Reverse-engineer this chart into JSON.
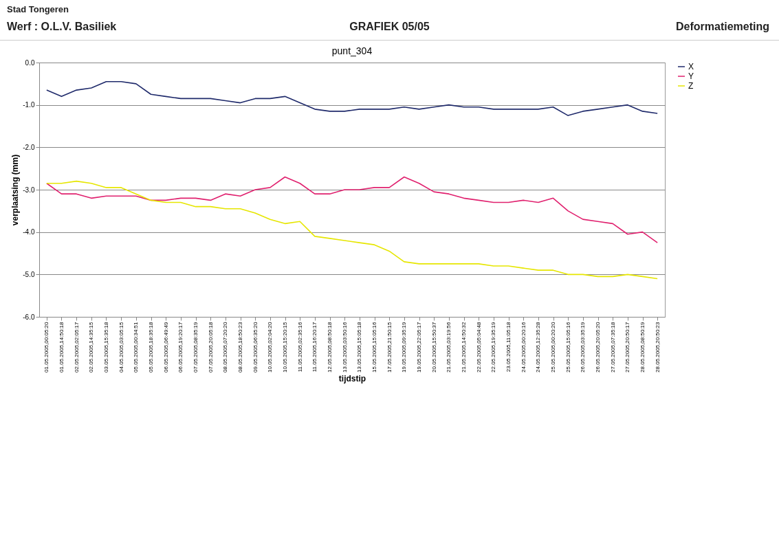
{
  "chart_data": {
    "type": "line",
    "title": "punt_304",
    "xlabel": "tijdstip",
    "ylabel": "verplaatsing (mm)",
    "annotations": [
      "Stad Tongeren",
      "Werf :  O.L.V. Basiliek",
      "GRAFIEK 05/05",
      "Deformatiemeting"
    ],
    "categories": [
      "01.05.2005,00:05:20",
      "01.05.2005,14:50:18",
      "02.05.2005,02:05:17",
      "02.05.2005,14:35:15",
      "03.05.2005,15:35:18",
      "04.05.2005,03:05:15",
      "05.05.2005,00:34:51",
      "05.05.2005,18:35:18",
      "06.05.2005,06:49:49",
      "06.05.2005,19:20:17",
      "07.05.2005,08:35:19",
      "07.05.2005,20:05:18",
      "08.05.2005,07:20:20",
      "08.05.2005,18:50:23",
      "09.05.2005,06:35:20",
      "10.05.2005,02:04:20",
      "10.05.2005,15:20:15",
      "11.05.2005,02:35:16",
      "11.05.2005,16:20:17",
      "12.05.2005,08:50:18",
      "13.05.2005,03:50:16",
      "13.05.2005,15:05:18",
      "15.05.2005,15:05:16",
      "17.05.2005,21:50:15",
      "19.05.2005,09:35:19",
      "19.05.2005,22:05:17",
      "20.05.2005,15:50:37",
      "21.05.2005,03:19:56",
      "21.05.2005,14:50:32",
      "22.05.2005,05:04:48",
      "22.05.2005,19:35:19",
      "23.05.2005,11:05:18",
      "24.05.2005,00:20:16",
      "24.05.2005,12:35:28",
      "25.05.2005,00:20:20",
      "25.05.2005,15:05:16",
      "26.05.2005,03:35:19",
      "26.05.2005,20:05:20",
      "27.05.2005,07:35:18",
      "27.05.2005,20:50:17",
      "28.05.2005,08:50:19",
      "28.05.2005,20:50:23"
    ],
    "series": [
      {
        "name": "X",
        "color": "#1f2a6b",
        "values": [
          -0.65,
          -0.8,
          -0.65,
          -0.6,
          -0.45,
          -0.45,
          -0.5,
          -0.75,
          -0.8,
          -0.85,
          -0.85,
          -0.85,
          -0.9,
          -0.95,
          -0.85,
          -0.85,
          -0.8,
          -0.95,
          -1.1,
          -1.15,
          -1.15,
          -1.1,
          -1.1,
          -1.1,
          -1.05,
          -1.1,
          -1.05,
          -1.0,
          -1.05,
          -1.05,
          -1.1,
          -1.1,
          -1.1,
          -1.1,
          -1.05,
          -1.25,
          -1.15,
          -1.1,
          -1.05,
          -1.0,
          -1.15,
          -1.2
        ]
      },
      {
        "name": "Y",
        "color": "#e0206e",
        "values": [
          -2.85,
          -3.1,
          -3.1,
          -3.2,
          -3.15,
          -3.15,
          -3.15,
          -3.25,
          -3.25,
          -3.2,
          -3.2,
          -3.25,
          -3.1,
          -3.15,
          -3.0,
          -2.95,
          -2.7,
          -2.85,
          -3.1,
          -3.1,
          -3.0,
          -3.0,
          -2.95,
          -2.95,
          -2.7,
          -2.85,
          -3.05,
          -3.1,
          -3.2,
          -3.25,
          -3.3,
          -3.3,
          -3.25,
          -3.3,
          -3.2,
          -3.5,
          -3.7,
          -3.75,
          -3.8,
          -4.05,
          -4.0,
          -4.25
        ]
      },
      {
        "name": "Z",
        "color": "#e6e600",
        "values": [
          -2.85,
          -2.85,
          -2.8,
          -2.85,
          -2.95,
          -2.95,
          -3.1,
          -3.25,
          -3.3,
          -3.3,
          -3.4,
          -3.4,
          -3.45,
          -3.45,
          -3.55,
          -3.7,
          -3.8,
          -3.75,
          -4.1,
          -4.15,
          -4.2,
          -4.25,
          -4.3,
          -4.45,
          -4.7,
          -4.75,
          -4.75,
          -4.75,
          -4.75,
          -4.75,
          -4.8,
          -4.8,
          -4.85,
          -4.9,
          -4.9,
          -5.0,
          -5.0,
          -5.05,
          -5.05,
          -5.0,
          -5.05,
          -5.1
        ]
      }
    ],
    "ylim": [
      -6,
      0
    ],
    "yticks": [
      {
        "value": -6,
        "label": "-6.0"
      },
      {
        "value": -5,
        "label": "-5.0"
      },
      {
        "value": -4,
        "label": "-4.0"
      },
      {
        "value": -3,
        "label": "-3.0"
      },
      {
        "value": -2,
        "label": "-2.0"
      },
      {
        "value": -1,
        "label": "-1.0"
      },
      {
        "value": 0,
        "label": "0.0"
      }
    ],
    "grid": "y",
    "legend": "right",
    "marker": "none",
    "line_style": "solid"
  }
}
